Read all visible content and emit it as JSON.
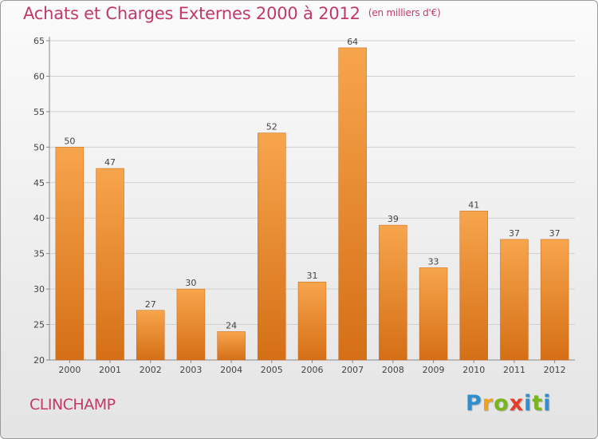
{
  "header": {
    "title": "Achats et Charges Externes 2000 à 2012",
    "unit": "(en milliers d'€)"
  },
  "footer": {
    "commune": "CLINCHAMP",
    "logo": "Proxiti"
  },
  "colors": {
    "title": "#c0396a",
    "bar_light": "#f7a54c",
    "bar_dark": "#d56f16"
  },
  "chart_data": {
    "type": "bar",
    "title": "Achats et Charges Externes 2000 à 2012",
    "xlabel": "",
    "ylabel": "",
    "categories": [
      "2000",
      "2001",
      "2002",
      "2003",
      "2004",
      "2005",
      "2006",
      "2007",
      "2008",
      "2009",
      "2010",
      "2011",
      "2012"
    ],
    "values": [
      50,
      47,
      27,
      30,
      24,
      52,
      31,
      64,
      39,
      33,
      41,
      37,
      37
    ],
    "ylim": [
      20,
      65
    ],
    "yticks": [
      20,
      25,
      30,
      35,
      40,
      45,
      50,
      55,
      60,
      65
    ],
    "grid": true,
    "data_labels": true
  }
}
